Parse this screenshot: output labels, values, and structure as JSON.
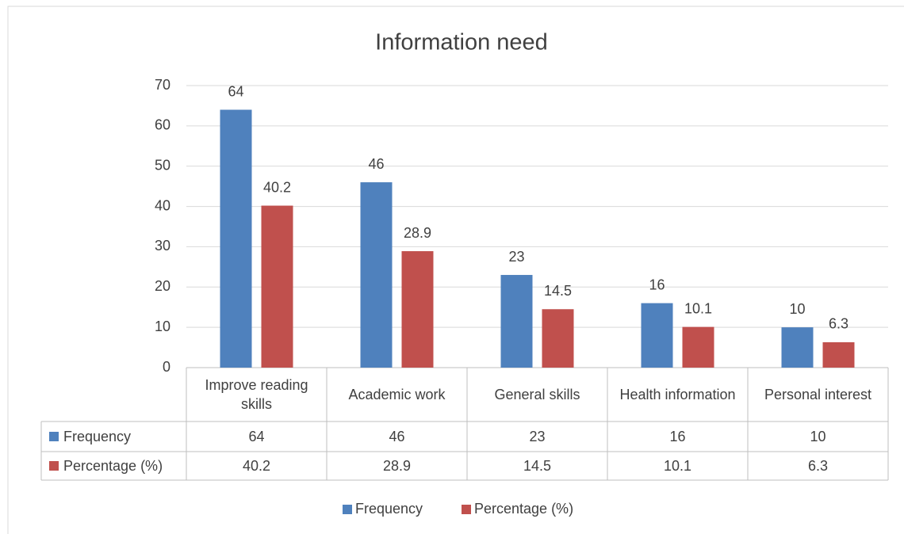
{
  "chart_data": {
    "type": "bar",
    "title": "Information need",
    "categories": [
      "Improve reading skills",
      "Academic work",
      "General skills",
      "Health information",
      "Personal interest"
    ],
    "series": [
      {
        "name": "Frequency",
        "color": "#4f81bd",
        "values": [
          64,
          46,
          23,
          16,
          10
        ]
      },
      {
        "name": "Percentage (%)",
        "color": "#c0504d",
        "values": [
          40.2,
          28.9,
          14.5,
          10.1,
          6.3
        ]
      }
    ],
    "ylim": [
      0,
      70
    ],
    "yticks": [
      0,
      10,
      20,
      30,
      40,
      50,
      60,
      70
    ],
    "grid": true,
    "legend": "bottom"
  }
}
